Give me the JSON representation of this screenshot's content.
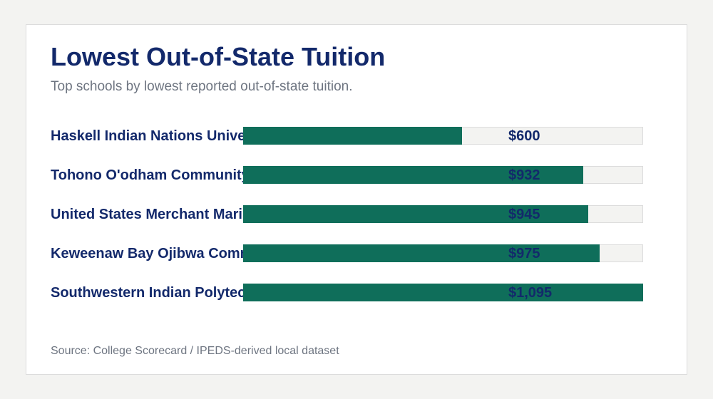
{
  "colors": {
    "page_bg": "#f3f3f1",
    "card_bg": "#ffffff",
    "title": "#13296b",
    "muted": "#6e7581",
    "bar": "#0f6e5a",
    "track": "#f3f3f1"
  },
  "chart_data": {
    "type": "bar",
    "orientation": "horizontal",
    "title": "Lowest Out-of-State Tuition",
    "subtitle": "Top schools by lowest reported out-of-state tuition.",
    "source": "Source: College Scorecard / IPEDS-derived local dataset",
    "categories": [
      "Haskell Indian Nations University",
      "Tohono O'odham Community College",
      "United States Merchant Marine Academy",
      "Keweenaw Bay Ojibwa Community College",
      "Southwestern Indian Polytechnic Institute"
    ],
    "values": [
      600,
      932,
      945,
      975,
      1095
    ],
    "value_labels": [
      "$600",
      "$932",
      "$945",
      "$975",
      "$1,095"
    ],
    "xlim": [
      0,
      1095
    ],
    "grid": false
  }
}
